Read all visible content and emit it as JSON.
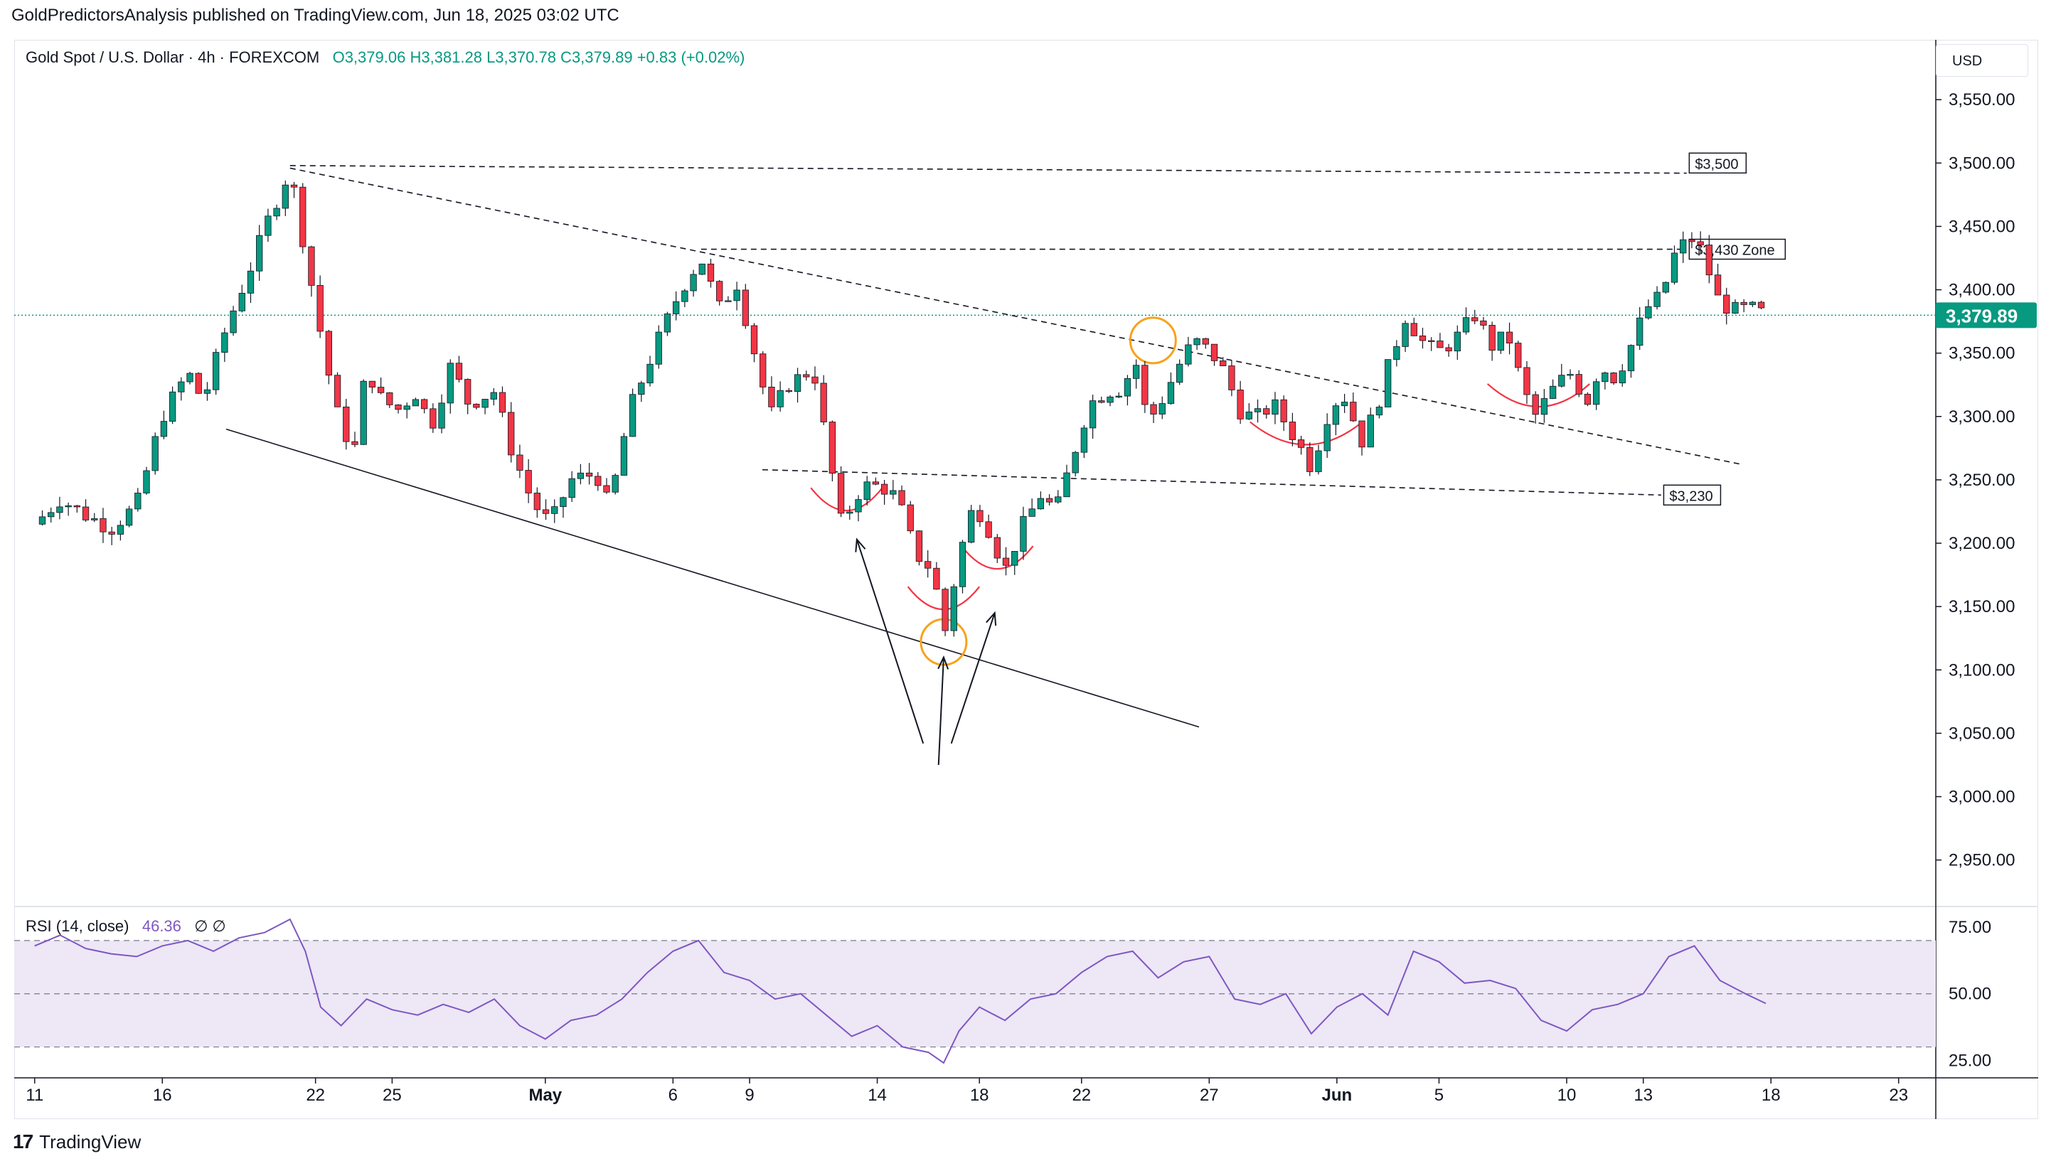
{
  "header": {
    "published": "GoldPredictorsAnalysis published on TradingView.com, Jun 18, 2025 03:02 UTC"
  },
  "legend": {
    "symbol": "Gold Spot / U.S. Dollar · 4h · FOREXCOM",
    "ohlc": "O3,379.06  H3,381.28  L3,370.78  C3,379.89  +0.83 (+0.02%)"
  },
  "currency": "USD",
  "rsi_legend": {
    "label": "RSI (14, close)",
    "value": "46.36",
    "extra": "∅  ∅"
  },
  "footer": {
    "brand": "TradingView",
    "logo": "tv-logo-icon"
  },
  "colors": {
    "up": "#089981",
    "down": "#f23645",
    "rsi": "#7e57c2",
    "current_price_bg": "#089981",
    "rsi_band": "#ede7f6"
  },
  "chart_data": [
    {
      "type": "candlestick",
      "title": "Gold Spot / U.S. Dollar · 4h · FOREXCOM",
      "ylim": [
        2915,
        3595
      ],
      "y_ticks": [
        2950,
        3000,
        3050,
        3100,
        3150,
        3200,
        3250,
        3300,
        3350,
        3400,
        3450,
        3500,
        3550
      ],
      "y_tick_labels": [
        "2,950.00",
        "3,000.00",
        "3,050.00",
        "3,100.00",
        "3,150.00",
        "3,200.00",
        "3,250.00",
        "3,300.00",
        "3,350.00",
        "3,400.00",
        "3,450.00",
        "3,500.00",
        "3,550.00"
      ],
      "x_tick_labels": [
        {
          "label": "11",
          "day": 0
        },
        {
          "label": "16",
          "day": 5
        },
        {
          "label": "22",
          "day": 11
        },
        {
          "label": "25",
          "day": 14
        },
        {
          "label": "May",
          "day": 20
        },
        {
          "label": "6",
          "day": 25
        },
        {
          "label": "9",
          "day": 28
        },
        {
          "label": "14",
          "day": 33
        },
        {
          "label": "18",
          "day": 37
        },
        {
          "label": "22",
          "day": 41
        },
        {
          "label": "27",
          "day": 46
        },
        {
          "label": "Jun",
          "day": 51
        },
        {
          "label": "5",
          "day": 55
        },
        {
          "label": "10",
          "day": 60
        },
        {
          "label": "13",
          "day": 63
        },
        {
          "label": "18",
          "day": 68
        },
        {
          "label": "23",
          "day": 73
        }
      ],
      "x_range_days": [
        -0.8,
        74.4
      ],
      "close_path": [
        [
          0,
          3215
        ],
        [
          1,
          3235
        ],
        [
          2,
          3222
        ],
        [
          3,
          3212
        ],
        [
          4,
          3230
        ],
        [
          5,
          3300
        ],
        [
          6,
          3335
        ],
        [
          6.6,
          3312
        ],
        [
          7.5,
          3370
        ],
        [
          8.5,
          3420
        ],
        [
          9.2,
          3458
        ],
        [
          10,
          3495
        ],
        [
          10.6,
          3430
        ],
        [
          11.3,
          3355
        ],
        [
          11.8,
          3305
        ],
        [
          12.5,
          3270
        ],
        [
          13,
          3340
        ],
        [
          13.5,
          3315
        ],
        [
          14.2,
          3305
        ],
        [
          15,
          3320
        ],
        [
          15.5,
          3290
        ],
        [
          16.3,
          3340
        ],
        [
          17,
          3310
        ],
        [
          18,
          3320
        ],
        [
          18.6,
          3278
        ],
        [
          19.5,
          3232
        ],
        [
          20.2,
          3215
        ],
        [
          21,
          3250
        ],
        [
          22,
          3255
        ],
        [
          22.5,
          3228
        ],
        [
          23.3,
          3305
        ],
        [
          24.2,
          3350
        ],
        [
          25.3,
          3400
        ],
        [
          26.1,
          3425
        ],
        [
          26.8,
          3385
        ],
        [
          27.5,
          3405
        ],
        [
          28.2,
          3350
        ],
        [
          28.8,
          3300
        ],
        [
          29.5,
          3325
        ],
        [
          30.5,
          3338
        ],
        [
          31,
          3280
        ],
        [
          31.6,
          3215
        ],
        [
          32.4,
          3245
        ],
        [
          33.2,
          3245
        ],
        [
          33.8,
          3235
        ],
        [
          34.5,
          3192
        ],
        [
          35.2,
          3178
        ],
        [
          35.6,
          3125
        ],
        [
          36.2,
          3190
        ],
        [
          36.8,
          3232
        ],
        [
          37.4,
          3210
        ],
        [
          38,
          3178
        ],
        [
          38.6,
          3210
        ],
        [
          39.4,
          3238
        ],
        [
          40,
          3225
        ],
        [
          40.6,
          3265
        ],
        [
          41.3,
          3310
        ],
        [
          42,
          3320
        ],
        [
          42.6,
          3322
        ],
        [
          43.1,
          3345
        ],
        [
          43.6,
          3295
        ],
        [
          44.2,
          3315
        ],
        [
          44.8,
          3340
        ],
        [
          45.4,
          3360
        ],
        [
          46.1,
          3350
        ],
        [
          46.6,
          3335
        ],
        [
          47.2,
          3305
        ],
        [
          47.8,
          3298
        ],
        [
          48.5,
          3310
        ],
        [
          49.3,
          3285
        ],
        [
          50,
          3260
        ],
        [
          50.6,
          3300
        ],
        [
          51.2,
          3320
        ],
        [
          52,
          3280
        ],
        [
          52.6,
          3310
        ],
        [
          53.1,
          3345
        ],
        [
          53.7,
          3380
        ],
        [
          54.3,
          3360
        ],
        [
          54.9,
          3350
        ],
        [
          55.6,
          3360
        ],
        [
          56.4,
          3380
        ],
        [
          57.1,
          3355
        ],
        [
          57.7,
          3365
        ],
        [
          58.3,
          3320
        ],
        [
          58.8,
          3300
        ],
        [
          59.4,
          3320
        ],
        [
          60.1,
          3335
        ],
        [
          60.8,
          3312
        ],
        [
          61.3,
          3340
        ],
        [
          61.9,
          3330
        ],
        [
          62.5,
          3355
        ],
        [
          63.1,
          3385
        ],
        [
          63.7,
          3395
        ],
        [
          64.3,
          3432
        ],
        [
          64.9,
          3440
        ],
        [
          65.4,
          3428
        ],
        [
          65.8,
          3395
        ],
        [
          66.5,
          3383
        ],
        [
          67.2,
          3385
        ],
        [
          67.8,
          3380
        ]
      ],
      "current_price": {
        "value": 3379.89,
        "label": "3,379.89"
      },
      "annotations": [
        {
          "kind": "label",
          "text": "$3,500",
          "at": [
            64.8,
            3500
          ]
        },
        {
          "kind": "label",
          "text": "$3,430 Zone",
          "at": [
            64.8,
            3432
          ]
        },
        {
          "kind": "label",
          "text": "$3,230",
          "at": [
            63.8,
            3238
          ]
        },
        {
          "kind": "line",
          "style": "dashed",
          "from": [
            10,
            3498
          ],
          "to": [
            64.7,
            3492
          ]
        },
        {
          "kind": "line",
          "style": "dashed",
          "from": [
            26.1,
            3432
          ],
          "to": [
            64.7,
            3432
          ]
        },
        {
          "kind": "line",
          "style": "dashed",
          "from": [
            28.5,
            3258
          ],
          "to": [
            63.7,
            3238
          ]
        },
        {
          "kind": "line",
          "style": "dashed",
          "from": [
            10,
            3496
          ],
          "to": [
            66.9,
            3262
          ]
        },
        {
          "kind": "line",
          "style": "solid",
          "from": [
            7.5,
            3290
          ],
          "to": [
            45.6,
            3055
          ]
        },
        {
          "kind": "circle",
          "at": [
            35.6,
            3122
          ]
        },
        {
          "kind": "circle",
          "at": [
            43.8,
            3360
          ]
        },
        {
          "kind": "arc",
          "at": [
            31.8,
            3228
          ],
          "half_width": 1.4
        },
        {
          "kind": "arc",
          "at": [
            35.6,
            3150
          ],
          "half_width": 1.4
        },
        {
          "kind": "arc",
          "at": [
            37.7,
            3182
          ],
          "half_width": 1.4
        },
        {
          "kind": "arc",
          "at": [
            49.8,
            3280
          ],
          "half_width": 2.2
        },
        {
          "kind": "arc",
          "at": [
            58.9,
            3310
          ],
          "half_width": 2.0
        },
        {
          "kind": "arrow",
          "from": [
            34.8,
            3042
          ],
          "to": [
            32.2,
            3203
          ]
        },
        {
          "kind": "arrow",
          "from": [
            35.4,
            3025
          ],
          "to": [
            35.6,
            3110
          ]
        },
        {
          "kind": "arrow",
          "from": [
            35.9,
            3042
          ],
          "to": [
            37.6,
            3145
          ]
        }
      ]
    },
    {
      "type": "line",
      "title": "RSI (14, close)",
      "ylim": [
        20,
        82
      ],
      "y_ticks": [
        25,
        50,
        75
      ],
      "y_tick_labels": [
        "25.00",
        "50.00",
        "75.00"
      ],
      "band": [
        30,
        70
      ],
      "series": [
        {
          "name": "RSI (14, close)",
          "points": [
            [
              0,
              68
            ],
            [
              1,
              72
            ],
            [
              2,
              67
            ],
            [
              3,
              65
            ],
            [
              4,
              64
            ],
            [
              5,
              68
            ],
            [
              6,
              70
            ],
            [
              7,
              66
            ],
            [
              8,
              71
            ],
            [
              9,
              73
            ],
            [
              10,
              78
            ],
            [
              10.6,
              66
            ],
            [
              11.2,
              45
            ],
            [
              12,
              38
            ],
            [
              13,
              48
            ],
            [
              14,
              44
            ],
            [
              15,
              42
            ],
            [
              16,
              46
            ],
            [
              17,
              43
            ],
            [
              18,
              48
            ],
            [
              19,
              38
            ],
            [
              20,
              33
            ],
            [
              21,
              40
            ],
            [
              22,
              42
            ],
            [
              23,
              48
            ],
            [
              24,
              58
            ],
            [
              25,
              66
            ],
            [
              26,
              70
            ],
            [
              27,
              58
            ],
            [
              28,
              55
            ],
            [
              29,
              48
            ],
            [
              30,
              50
            ],
            [
              31,
              42
            ],
            [
              32,
              34
            ],
            [
              33,
              38
            ],
            [
              34,
              30
            ],
            [
              35,
              28
            ],
            [
              35.6,
              24
            ],
            [
              36.2,
              36
            ],
            [
              37,
              45
            ],
            [
              38,
              40
            ],
            [
              39,
              48
            ],
            [
              40,
              50
            ],
            [
              41,
              58
            ],
            [
              42,
              64
            ],
            [
              43,
              66
            ],
            [
              44,
              56
            ],
            [
              45,
              62
            ],
            [
              46,
              64
            ],
            [
              47,
              48
            ],
            [
              48,
              46
            ],
            [
              49,
              50
            ],
            [
              50,
              35
            ],
            [
              51,
              45
            ],
            [
              52,
              50
            ],
            [
              53,
              42
            ],
            [
              54,
              66
            ],
            [
              55,
              62
            ],
            [
              56,
              54
            ],
            [
              57,
              55
            ],
            [
              58,
              52
            ],
            [
              59,
              40
            ],
            [
              60,
              36
            ],
            [
              61,
              44
            ],
            [
              62,
              46
            ],
            [
              63,
              50
            ],
            [
              64,
              64
            ],
            [
              65,
              68
            ],
            [
              66,
              55
            ],
            [
              67,
              50
            ],
            [
              67.8,
              46.36
            ]
          ]
        }
      ]
    }
  ]
}
